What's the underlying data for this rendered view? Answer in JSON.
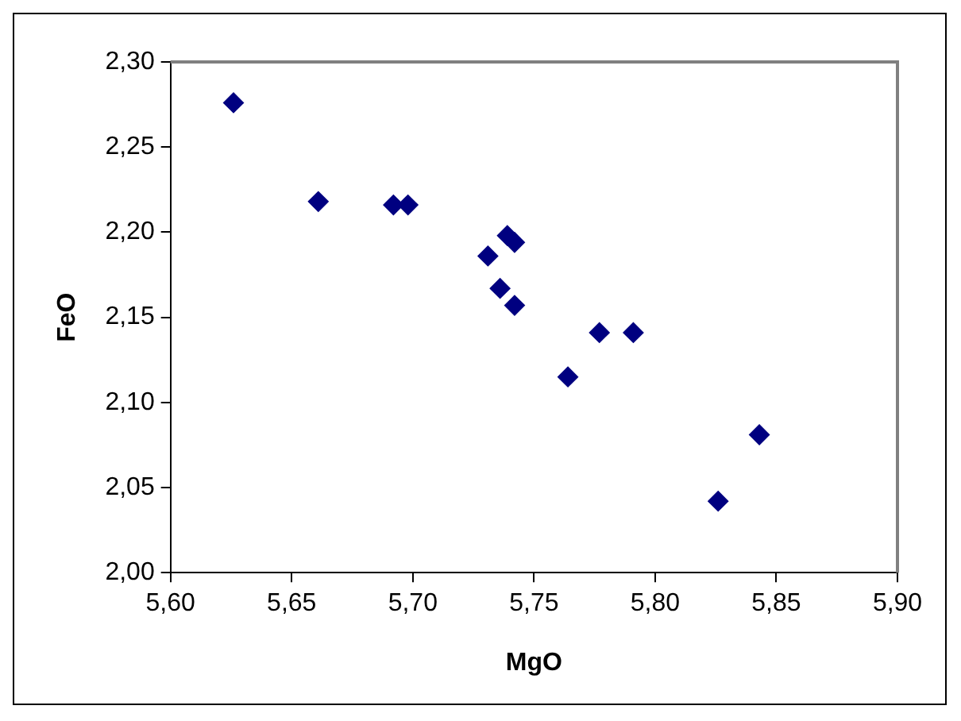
{
  "chart_data": {
    "type": "scatter",
    "xlabel": "MgO",
    "ylabel": "FeO",
    "x": [
      5.626,
      5.661,
      5.692,
      5.698,
      5.731,
      5.739,
      5.742,
      5.736,
      5.742,
      5.764,
      5.777,
      5.791,
      5.826,
      5.843
    ],
    "series": [
      {
        "color": "#000080",
        "values": [
          2.276,
          2.218,
          2.216,
          2.216,
          2.186,
          2.198,
          2.194,
          2.167,
          2.157,
          2.115,
          2.141,
          2.141,
          2.042,
          2.081
        ]
      }
    ],
    "xlim": [
      5.6,
      5.9
    ],
    "xticks": [
      {
        "value": 5.6,
        "label": "5,60"
      },
      {
        "value": 5.65,
        "label": "5,65"
      },
      {
        "value": 5.7,
        "label": "5,70"
      },
      {
        "value": 5.75,
        "label": "5,75"
      },
      {
        "value": 5.8,
        "label": "5,80"
      },
      {
        "value": 5.85,
        "label": "5,85"
      },
      {
        "value": 5.9,
        "label": "5,90"
      }
    ],
    "ylim": [
      2.0,
      2.3
    ],
    "yticks": [
      {
        "value": 2.0,
        "label": "2,00"
      },
      {
        "value": 2.05,
        "label": "2,05"
      },
      {
        "value": 2.1,
        "label": "2,10"
      },
      {
        "value": 2.15,
        "label": "2,15"
      },
      {
        "value": 2.2,
        "label": "2,20"
      },
      {
        "value": 2.25,
        "label": "2,25"
      },
      {
        "value": 2.3,
        "label": "2,30"
      }
    ],
    "grid": false,
    "legend": false,
    "marker": "diamond"
  }
}
